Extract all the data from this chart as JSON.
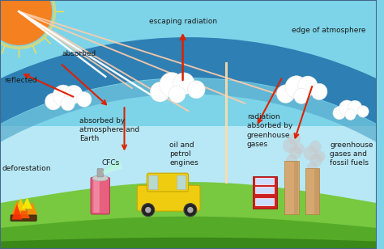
{
  "bg_sky": "#7dd4e8",
  "bg_sky_lower": "#b8e8f5",
  "atm_band_outer": "#2878b0",
  "atm_band_inner": "#55aacc",
  "ground_green": "#78c840",
  "ground_green2": "#55aa28",
  "ground_dark": "#3a8818",
  "sun_body": "#f58020",
  "sun_glow": "#ffcc00",
  "arrow_red": "#dd2200",
  "arrow_orange": "#ff8844",
  "white": "#ffffff",
  "text_color": "#1a1a1a",
  "smoke_color": "#bbbbbb",
  "labels": {
    "reflected": "reflected",
    "absorbed": "absorbed",
    "escaping": "escaping radiation",
    "edge_atm": "edge of atmosphere",
    "absorbed_atm": "absorbed by\natmosphere and\nEarth",
    "rad_greenhouse": "radiation\nabsorbed by\ngreenhouse\ngases",
    "deforestation": "deforestation",
    "cfcs": "CFCs",
    "oil_petrol": "oil and\npetrol\nengines",
    "greenhouse_ff": "greenhouse\ngases and\nfossil fuels"
  },
  "font_size": 6.5,
  "fig_width": 4.74,
  "fig_height": 3.08,
  "dpi": 100
}
